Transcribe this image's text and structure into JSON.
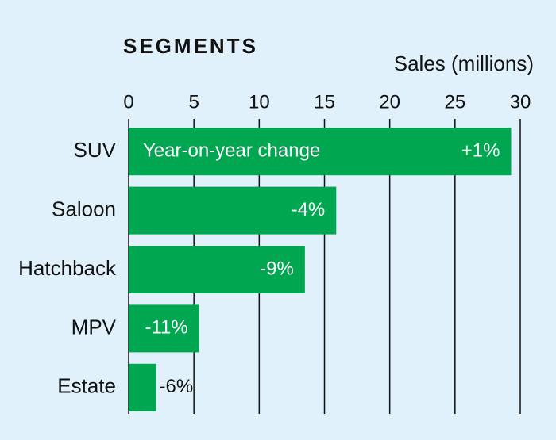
{
  "chart_data": {
    "type": "bar",
    "orientation": "horizontal",
    "title": "SEGMENTS",
    "x_label": "Sales (millions)",
    "annotation": "Year-on-year change",
    "categories": [
      "SUV",
      "Saloon",
      "Hatchback",
      "MPV",
      "Estate"
    ],
    "values": [
      29.3,
      15.9,
      13.5,
      5.4,
      2.1
    ],
    "change_labels": [
      "+1%",
      "-4%",
      "-9%",
      "-11%",
      "-6%"
    ],
    "color": "#00a650",
    "xlim": [
      0,
      30
    ],
    "xticks": [
      0,
      5,
      10,
      15,
      20,
      25,
      30
    ],
    "grid": true
  }
}
